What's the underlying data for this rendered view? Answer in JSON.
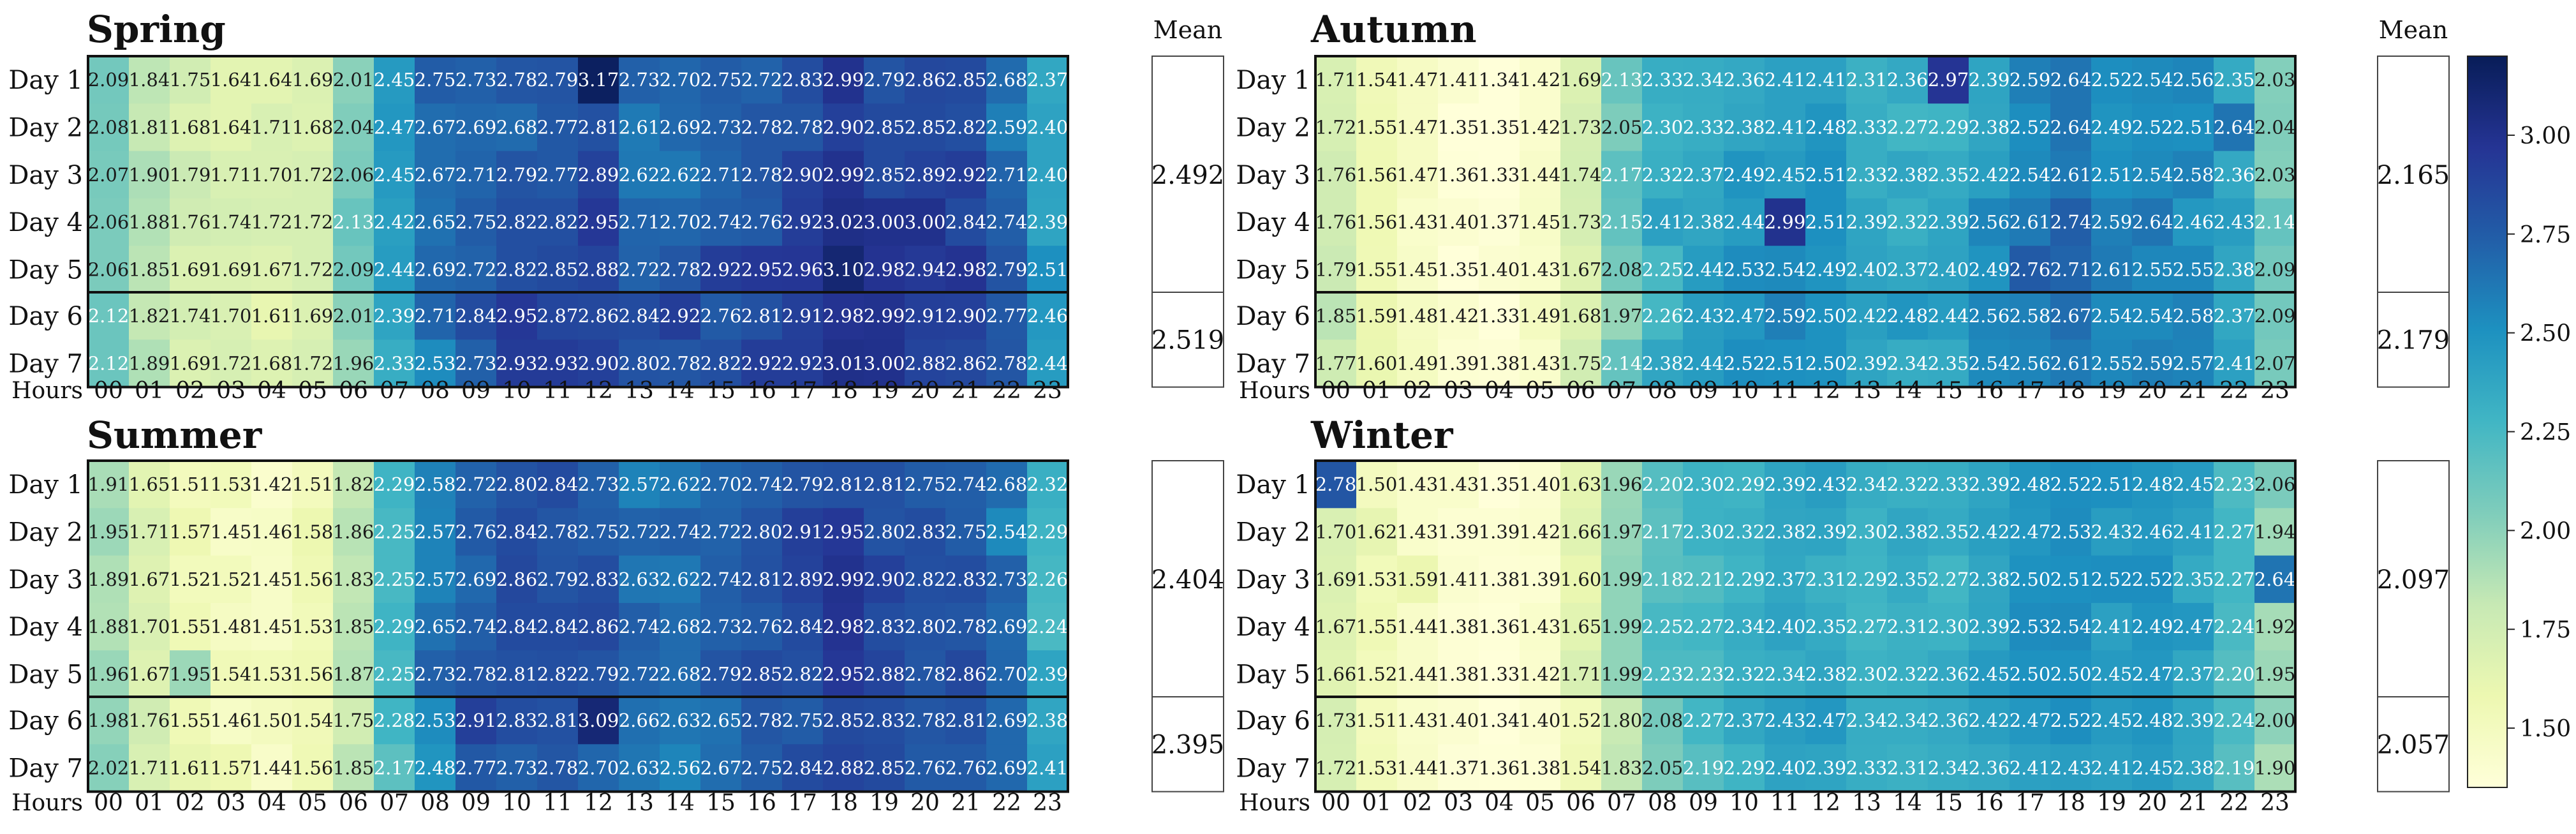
{
  "chart_data": {
    "type": "heatmap",
    "mean_label": "Mean",
    "hours_label": "Hours",
    "hours": [
      "00",
      "01",
      "02",
      "03",
      "04",
      "05",
      "06",
      "07",
      "08",
      "09",
      "10",
      "11",
      "12",
      "13",
      "14",
      "15",
      "16",
      "17",
      "18",
      "19",
      "20",
      "21",
      "22",
      "23"
    ],
    "colorbar": {
      "min": 1.35,
      "max": 3.2,
      "ticks": [
        "1.50",
        "1.75",
        "2.00",
        "2.25",
        "2.50",
        "2.75",
        "3.00"
      ]
    },
    "panels": [
      {
        "title": "Spring",
        "weekday": {
          "rows": [
            "Day 1",
            "Day 2",
            "Day 3",
            "Day 4",
            "Day 5"
          ],
          "values": [
            [
              2.09,
              1.84,
              1.75,
              1.64,
              1.64,
              1.69,
              2.01,
              2.45,
              2.75,
              2.73,
              2.78,
              2.79,
              3.17,
              2.73,
              2.7,
              2.75,
              2.72,
              2.83,
              2.99,
              2.79,
              2.86,
              2.85,
              2.68,
              2.37
            ],
            [
              2.08,
              1.81,
              1.68,
              1.64,
              1.71,
              1.68,
              2.04,
              2.47,
              2.67,
              2.69,
              2.68,
              2.77,
              2.81,
              2.61,
              2.69,
              2.73,
              2.78,
              2.78,
              2.9,
              2.85,
              2.85,
              2.82,
              2.59,
              2.4
            ],
            [
              2.07,
              1.9,
              1.79,
              1.71,
              1.7,
              1.72,
              2.06,
              2.45,
              2.67,
              2.71,
              2.79,
              2.77,
              2.89,
              2.62,
              2.62,
              2.71,
              2.78,
              2.9,
              2.99,
              2.85,
              2.89,
              2.92,
              2.71,
              2.4
            ],
            [
              2.06,
              1.88,
              1.76,
              1.74,
              1.72,
              1.72,
              2.13,
              2.42,
              2.65,
              2.75,
              2.82,
              2.82,
              2.95,
              2.71,
              2.7,
              2.74,
              2.76,
              2.92,
              3.02,
              3.0,
              3.0,
              2.84,
              2.74,
              2.39
            ],
            [
              2.06,
              1.85,
              1.69,
              1.69,
              1.67,
              1.72,
              2.09,
              2.44,
              2.69,
              2.72,
              2.82,
              2.85,
              2.88,
              2.72,
              2.78,
              2.92,
              2.95,
              2.96,
              3.1,
              2.98,
              2.94,
              2.98,
              2.79,
              2.51
            ]
          ],
          "mean": "2.492"
        },
        "weekend": {
          "rows": [
            "Day 6",
            "Day 7"
          ],
          "values": [
            [
              2.12,
              1.82,
              1.74,
              1.7,
              1.61,
              1.69,
              2.01,
              2.39,
              2.71,
              2.84,
              2.95,
              2.87,
              2.86,
              2.84,
              2.92,
              2.76,
              2.81,
              2.91,
              2.98,
              2.99,
              2.91,
              2.9,
              2.77,
              2.46
            ],
            [
              2.12,
              1.89,
              1.69,
              1.72,
              1.68,
              1.72,
              1.96,
              2.33,
              2.53,
              2.73,
              2.93,
              2.93,
              2.9,
              2.8,
              2.78,
              2.82,
              2.92,
              2.92,
              3.01,
              3.0,
              2.88,
              2.86,
              2.78,
              2.44
            ]
          ],
          "mean": "2.519"
        }
      },
      {
        "title": "Autumn",
        "weekday": {
          "rows": [
            "Day 1",
            "Day 2",
            "Day 3",
            "Day 4",
            "Day 5"
          ],
          "values": [
            [
              1.71,
              1.54,
              1.47,
              1.41,
              1.34,
              1.42,
              1.69,
              2.13,
              2.33,
              2.34,
              2.36,
              2.41,
              2.41,
              2.31,
              2.36,
              2.97,
              2.39,
              2.59,
              2.64,
              2.52,
              2.54,
              2.56,
              2.35,
              2.03
            ],
            [
              1.72,
              1.55,
              1.47,
              1.35,
              1.35,
              1.42,
              1.73,
              2.05,
              2.3,
              2.33,
              2.38,
              2.41,
              2.48,
              2.33,
              2.27,
              2.29,
              2.38,
              2.52,
              2.64,
              2.49,
              2.52,
              2.51,
              2.64,
              2.04
            ],
            [
              1.76,
              1.56,
              1.47,
              1.36,
              1.33,
              1.44,
              1.74,
              2.17,
              2.32,
              2.37,
              2.49,
              2.45,
              2.51,
              2.33,
              2.38,
              2.35,
              2.42,
              2.54,
              2.61,
              2.51,
              2.54,
              2.58,
              2.36,
              2.03
            ],
            [
              1.76,
              1.56,
              1.43,
              1.4,
              1.37,
              1.45,
              1.73,
              2.15,
              2.41,
              2.38,
              2.44,
              2.99,
              2.51,
              2.39,
              2.32,
              2.39,
              2.56,
              2.61,
              2.74,
              2.59,
              2.64,
              2.46,
              2.43,
              2.14
            ],
            [
              1.79,
              1.55,
              1.45,
              1.35,
              1.4,
              1.43,
              1.67,
              2.08,
              2.25,
              2.44,
              2.53,
              2.54,
              2.49,
              2.4,
              2.37,
              2.4,
              2.49,
              2.76,
              2.71,
              2.61,
              2.55,
              2.55,
              2.38,
              2.09
            ]
          ],
          "mean": "2.165"
        },
        "weekend": {
          "rows": [
            "Day 6",
            "Day 7"
          ],
          "values": [
            [
              1.85,
              1.59,
              1.48,
              1.42,
              1.33,
              1.49,
              1.68,
              1.97,
              2.26,
              2.43,
              2.47,
              2.59,
              2.5,
              2.42,
              2.48,
              2.44,
              2.56,
              2.58,
              2.67,
              2.54,
              2.54,
              2.58,
              2.37,
              2.09
            ],
            [
              1.77,
              1.6,
              1.49,
              1.39,
              1.38,
              1.43,
              1.75,
              2.14,
              2.38,
              2.44,
              2.52,
              2.51,
              2.5,
              2.39,
              2.34,
              2.35,
              2.54,
              2.56,
              2.61,
              2.55,
              2.59,
              2.57,
              2.41,
              2.07
            ]
          ],
          "mean": "2.179"
        }
      },
      {
        "title": "Summer",
        "weekday": {
          "rows": [
            "Day 1",
            "Day 2",
            "Day 3",
            "Day 4",
            "Day 5"
          ],
          "values": [
            [
              1.91,
              1.65,
              1.51,
              1.53,
              1.42,
              1.51,
              1.82,
              2.29,
              2.58,
              2.72,
              2.8,
              2.84,
              2.73,
              2.57,
              2.62,
              2.7,
              2.74,
              2.79,
              2.81,
              2.81,
              2.75,
              2.74,
              2.68,
              2.32
            ],
            [
              1.95,
              1.71,
              1.57,
              1.45,
              1.46,
              1.58,
              1.86,
              2.25,
              2.57,
              2.76,
              2.84,
              2.78,
              2.75,
              2.72,
              2.74,
              2.72,
              2.8,
              2.91,
              2.95,
              2.8,
              2.83,
              2.75,
              2.54,
              2.29
            ],
            [
              1.89,
              1.67,
              1.52,
              1.52,
              1.45,
              1.56,
              1.83,
              2.25,
              2.57,
              2.69,
              2.86,
              2.79,
              2.83,
              2.63,
              2.62,
              2.74,
              2.81,
              2.89,
              2.99,
              2.9,
              2.82,
              2.83,
              2.73,
              2.26
            ],
            [
              1.88,
              1.7,
              1.55,
              1.48,
              1.45,
              1.53,
              1.85,
              2.29,
              2.65,
              2.74,
              2.84,
              2.84,
              2.86,
              2.74,
              2.68,
              2.73,
              2.76,
              2.84,
              2.98,
              2.83,
              2.8,
              2.78,
              2.69,
              2.24
            ],
            [
              1.96,
              1.67,
              1.95,
              1.54,
              1.53,
              1.56,
              1.87,
              2.25,
              2.73,
              2.78,
              2.81,
              2.82,
              2.79,
              2.72,
              2.68,
              2.79,
              2.85,
              2.82,
              2.95,
              2.88,
              2.78,
              2.86,
              2.7,
              2.39
            ]
          ],
          "mean": "2.404"
        },
        "weekend": {
          "rows": [
            "Day 6",
            "Day 7"
          ],
          "values": [
            [
              1.98,
              1.76,
              1.55,
              1.46,
              1.5,
              1.54,
              1.75,
              2.28,
              2.53,
              2.91,
              2.83,
              2.81,
              3.09,
              2.66,
              2.63,
              2.65,
              2.78,
              2.75,
              2.85,
              2.83,
              2.78,
              2.81,
              2.69,
              2.38
            ],
            [
              2.02,
              1.71,
              1.61,
              1.57,
              1.44,
              1.56,
              1.85,
              2.17,
              2.48,
              2.77,
              2.73,
              2.78,
              2.7,
              2.63,
              2.56,
              2.67,
              2.75,
              2.84,
              2.88,
              2.85,
              2.76,
              2.76,
              2.69,
              2.41
            ]
          ],
          "mean": "2.395"
        }
      },
      {
        "title": "Winter",
        "weekday": {
          "rows": [
            "Day 1",
            "Day 2",
            "Day 3",
            "Day 4",
            "Day 5"
          ],
          "values": [
            [
              2.78,
              1.5,
              1.43,
              1.43,
              1.35,
              1.4,
              1.63,
              1.96,
              2.2,
              2.3,
              2.29,
              2.39,
              2.43,
              2.34,
              2.32,
              2.33,
              2.39,
              2.48,
              2.52,
              2.51,
              2.48,
              2.45,
              2.23,
              2.06
            ],
            [
              1.7,
              1.62,
              1.43,
              1.39,
              1.39,
              1.42,
              1.66,
              1.97,
              2.17,
              2.3,
              2.32,
              2.38,
              2.39,
              2.3,
              2.38,
              2.35,
              2.42,
              2.47,
              2.53,
              2.43,
              2.46,
              2.41,
              2.27,
              1.94
            ],
            [
              1.69,
              1.53,
              1.59,
              1.41,
              1.38,
              1.39,
              1.6,
              1.99,
              2.18,
              2.21,
              2.29,
              2.37,
              2.31,
              2.29,
              2.35,
              2.27,
              2.38,
              2.5,
              2.51,
              2.52,
              2.52,
              2.35,
              2.27,
              2.64
            ],
            [
              1.67,
              1.55,
              1.44,
              1.38,
              1.36,
              1.43,
              1.65,
              1.99,
              2.25,
              2.27,
              2.34,
              2.4,
              2.35,
              2.27,
              2.31,
              2.3,
              2.39,
              2.53,
              2.54,
              2.41,
              2.49,
              2.47,
              2.24,
              1.92
            ],
            [
              1.66,
              1.52,
              1.44,
              1.38,
              1.33,
              1.42,
              1.71,
              1.99,
              2.23,
              2.23,
              2.32,
              2.34,
              2.38,
              2.3,
              2.32,
              2.36,
              2.45,
              2.5,
              2.5,
              2.45,
              2.47,
              2.37,
              2.2,
              1.95
            ]
          ],
          "mean": "2.097"
        },
        "weekend": {
          "rows": [
            "Day 6",
            "Day 7"
          ],
          "values": [
            [
              1.73,
              1.51,
              1.43,
              1.4,
              1.34,
              1.4,
              1.52,
              1.8,
              2.08,
              2.27,
              2.37,
              2.43,
              2.47,
              2.34,
              2.34,
              2.36,
              2.42,
              2.47,
              2.52,
              2.45,
              2.48,
              2.39,
              2.24,
              2.0
            ],
            [
              1.72,
              1.53,
              1.44,
              1.37,
              1.36,
              1.38,
              1.54,
              1.83,
              2.05,
              2.19,
              2.29,
              2.4,
              2.39,
              2.33,
              2.31,
              2.34,
              2.36,
              2.41,
              2.43,
              2.41,
              2.45,
              2.38,
              2.19,
              1.9
            ]
          ],
          "mean": "2.057"
        }
      }
    ]
  }
}
